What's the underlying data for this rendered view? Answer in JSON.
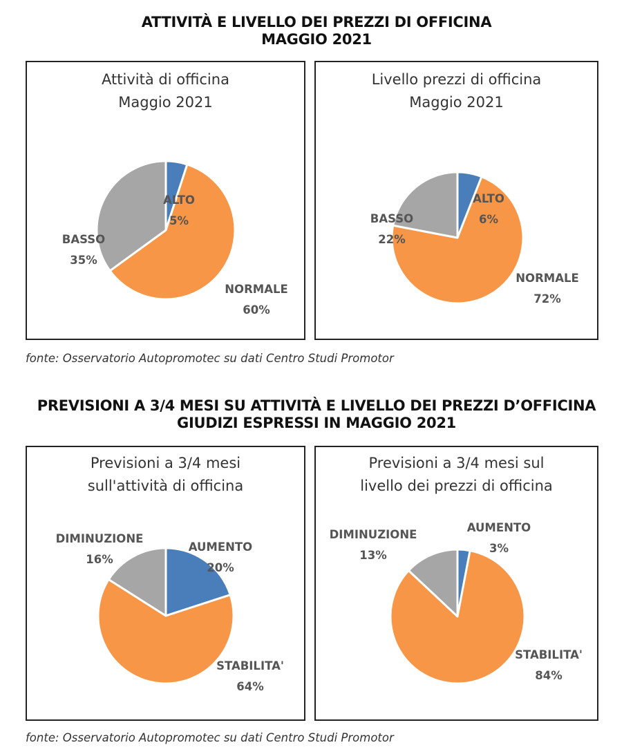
{
  "header_1": {
    "line1": "ATTIVITÀ E LIVELLO DEI PREZZI DI OFFICINA",
    "line2": "MAGGIO 2021"
  },
  "header_2": {
    "line1": "PREVISIONI A 3/4 MESI SU ATTIVITÀ E LIVELLO DEI PREZZI D’OFFICINA",
    "line2": "GIUDIZI ESPRESSI IN MAGGIO 2021"
  },
  "source_1": "fonte: Osservatorio Autopromotec su dati Centro Studi Promotor",
  "source_2": "fonte: Osservatorio Autopromotec su dati Centro Studi Promotor",
  "colors": {
    "blue": "#4a7ebb",
    "orange": "#f79646",
    "gray": "#a6a6a6"
  },
  "chart_data": [
    {
      "type": "pie",
      "title_lines": [
        "Attività di officina",
        "Maggio 2021"
      ],
      "slices": [
        {
          "label": "ALTO",
          "value": 5,
          "value_label": "5%",
          "color": "#4a7ebb"
        },
        {
          "label": "NORMALE",
          "value": 60,
          "value_label": "60%",
          "color": "#f79646"
        },
        {
          "label": "BASSO",
          "value": 35,
          "value_label": "35%",
          "color": "#a6a6a6"
        }
      ]
    },
    {
      "type": "pie",
      "title_lines": [
        "Livello prezzi di officina",
        "Maggio 2021"
      ],
      "slices": [
        {
          "label": "ALTO",
          "value": 6,
          "value_label": "6%",
          "color": "#4a7ebb"
        },
        {
          "label": "NORMALE",
          "value": 72,
          "value_label": "72%",
          "color": "#f79646"
        },
        {
          "label": "BASSO",
          "value": 22,
          "value_label": "22%",
          "color": "#a6a6a6"
        }
      ]
    },
    {
      "type": "pie",
      "title_lines": [
        "Previsioni a 3/4 mesi",
        "sull'attività di officina"
      ],
      "slices": [
        {
          "label": "AUMENTO",
          "value": 20,
          "value_label": "20%",
          "color": "#4a7ebb"
        },
        {
          "label": "STABILITA'",
          "value": 64,
          "value_label": "64%",
          "color": "#f79646"
        },
        {
          "label": "DIMINUZIONE",
          "value": 16,
          "value_label": "16%",
          "color": "#a6a6a6"
        }
      ]
    },
    {
      "type": "pie",
      "title_lines": [
        "Previsioni a 3/4 mesi sul",
        "livello dei prezzi di officina"
      ],
      "slices": [
        {
          "label": "AUMENTO",
          "value": 3,
          "value_label": "3%",
          "color": "#4a7ebb"
        },
        {
          "label": "STABILITA'",
          "value": 84,
          "value_label": "84%",
          "color": "#f79646"
        },
        {
          "label": "DIMINUZIONE",
          "value": 13,
          "value_label": "13%",
          "color": "#a6a6a6"
        }
      ]
    }
  ]
}
